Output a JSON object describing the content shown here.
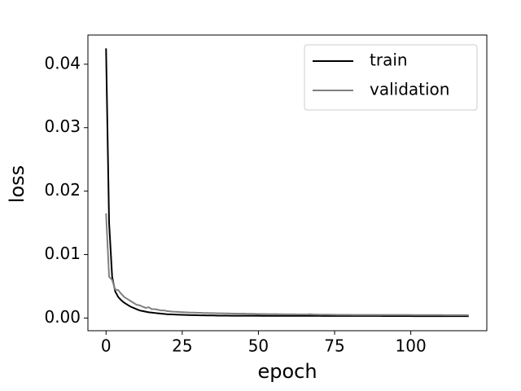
{
  "chart_data": {
    "type": "line",
    "xlabel": "epoch",
    "ylabel": "loss",
    "x": [
      0,
      1,
      2,
      3,
      4,
      5,
      6,
      7,
      8,
      9,
      10,
      11,
      12,
      13,
      14,
      15,
      16,
      17,
      18,
      19,
      20,
      21,
      22,
      23,
      24,
      25,
      26,
      27,
      28,
      29,
      30,
      31,
      32,
      33,
      34,
      35,
      36,
      37,
      38,
      39,
      40,
      41,
      42,
      43,
      44,
      45,
      46,
      47,
      48,
      49,
      50,
      51,
      52,
      53,
      54,
      55,
      56,
      57,
      58,
      59,
      60,
      61,
      62,
      63,
      64,
      65,
      66,
      67,
      68,
      69,
      70,
      71,
      72,
      73,
      74,
      75,
      76,
      77,
      78,
      79,
      80,
      81,
      82,
      83,
      84,
      85,
      86,
      87,
      88,
      89,
      90,
      91,
      92,
      93,
      94,
      95,
      96,
      97,
      98,
      99,
      100,
      101,
      102,
      103,
      104,
      105,
      106,
      107,
      108,
      109,
      110,
      111,
      112,
      113,
      114,
      115,
      116,
      117,
      118,
      119
    ],
    "series": [
      {
        "name": "train",
        "color": "#000000",
        "values": [
          0.0425,
          0.015,
          0.0065,
          0.0042,
          0.0033,
          0.0028,
          0.0024,
          0.0021,
          0.0018,
          0.0016,
          0.0014,
          0.0012,
          0.0011,
          0.001,
          0.0009,
          0.00085,
          0.0008,
          0.00075,
          0.0007,
          0.00065,
          0.0006,
          0.00058,
          0.00056,
          0.00054,
          0.00052,
          0.0005,
          0.00048,
          0.00047,
          0.00046,
          0.00045,
          0.00044,
          0.00043,
          0.00042,
          0.00041,
          0.0004,
          0.0004,
          0.00039,
          0.00038,
          0.00038,
          0.00037,
          0.00037,
          0.00036,
          0.00036,
          0.00036,
          0.00036,
          0.00036,
          0.00036,
          0.00036,
          0.00036,
          0.00036,
          0.00036,
          0.00035,
          0.00035,
          0.00035,
          0.00035,
          0.00035,
          0.00035,
          0.00035,
          0.00035,
          0.00035,
          0.00035,
          0.00034,
          0.00034,
          0.00034,
          0.00034,
          0.00034,
          0.00034,
          0.00034,
          0.00034,
          0.00034,
          0.00034,
          0.00033,
          0.00033,
          0.00033,
          0.00033,
          0.00033,
          0.00033,
          0.00033,
          0.00033,
          0.00033,
          0.00033,
          0.00032,
          0.00032,
          0.00032,
          0.00032,
          0.00032,
          0.00032,
          0.00032,
          0.00032,
          0.00032,
          0.00032,
          0.00031,
          0.00031,
          0.00031,
          0.00031,
          0.00031,
          0.00031,
          0.00031,
          0.00031,
          0.00031,
          0.00031,
          0.0003,
          0.0003,
          0.0003,
          0.0003,
          0.0003,
          0.0003,
          0.0003,
          0.0003,
          0.0003,
          0.0003,
          0.0003,
          0.0003,
          0.0003,
          0.0003,
          0.0003,
          0.0003,
          0.0003,
          0.0003,
          0.0003
        ]
      },
      {
        "name": "validation",
        "color": "#808080",
        "values": [
          0.0165,
          0.0065,
          0.006,
          0.0045,
          0.0044,
          0.0038,
          0.0033,
          0.003,
          0.0027,
          0.0024,
          0.0021,
          0.002,
          0.0018,
          0.0016,
          0.0017,
          0.0014,
          0.0014,
          0.0013,
          0.0012,
          0.0012,
          0.0011,
          0.00105,
          0.001,
          0.00098,
          0.00095,
          0.00092,
          0.0009,
          0.00088,
          0.00086,
          0.00085,
          0.00083,
          0.00082,
          0.0008,
          0.00079,
          0.00078,
          0.00077,
          0.00076,
          0.00075,
          0.00074,
          0.00073,
          0.00072,
          0.00071,
          0.0007,
          0.00069,
          0.00068,
          0.0007,
          0.00067,
          0.00066,
          0.00066,
          0.00065,
          0.00064,
          0.00063,
          0.00063,
          0.00062,
          0.00062,
          0.00061,
          0.00061,
          0.0006,
          0.0006,
          0.00059,
          0.00059,
          0.00058,
          0.00058,
          0.00057,
          0.00057,
          0.00056,
          0.00056,
          0.00062,
          0.00055,
          0.00055,
          0.00054,
          0.00054,
          0.00053,
          0.00053,
          0.00052,
          0.00052,
          0.00051,
          0.00051,
          0.0005,
          0.0005,
          0.0005,
          0.00049,
          0.00049,
          0.00049,
          0.00049,
          0.00049,
          0.00049,
          0.00049,
          0.00049,
          0.00049,
          0.00049,
          0.00048,
          0.00048,
          0.00048,
          0.00048,
          0.00048,
          0.00048,
          0.00048,
          0.00048,
          0.00048,
          0.00048,
          0.00047,
          0.00047,
          0.00047,
          0.00047,
          0.00047,
          0.00047,
          0.00047,
          0.00047,
          0.00047,
          0.00047,
          0.00046,
          0.00046,
          0.00046,
          0.00046,
          0.00046,
          0.00046,
          0.00046,
          0.00046,
          0.00046
        ]
      }
    ],
    "xlim": [
      -5.95,
      124.95
    ],
    "ylim": [
      -0.002,
      0.0446
    ],
    "xticks": [
      0,
      25,
      50,
      75,
      100
    ],
    "yticks": [
      {
        "value": 0,
        "label": "0.00"
      },
      {
        "value": 0.01,
        "label": "0.01"
      },
      {
        "value": 0.02,
        "label": "0.02"
      },
      {
        "value": 0.03,
        "label": "0.03"
      },
      {
        "value": 0.04,
        "label": "0.04"
      }
    ],
    "legend": "upper right",
    "grid": false
  }
}
